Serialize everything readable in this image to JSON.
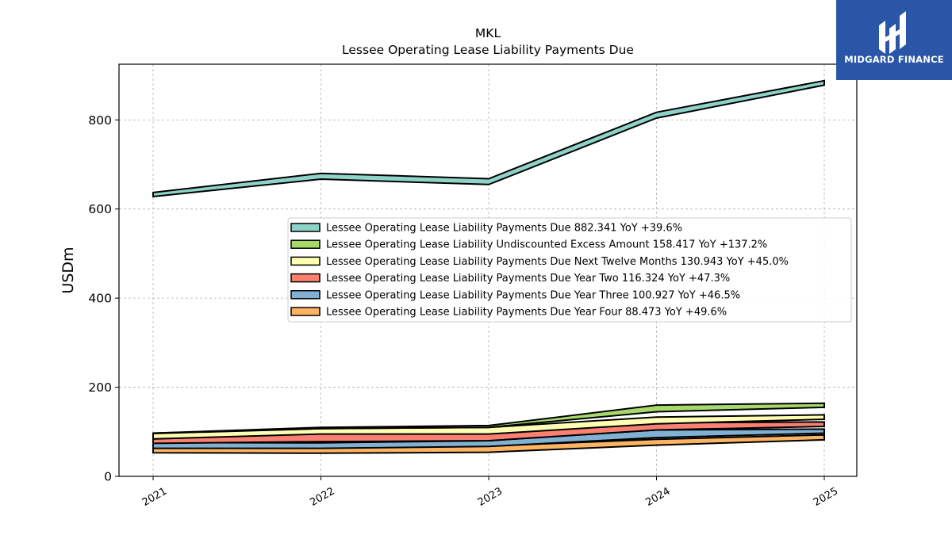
{
  "chart_data": {
    "type": "area",
    "title": "MKL",
    "subtitle": "Lessee Operating Lease Liability Payments Due",
    "ylabel": "USDm",
    "xlabel": "",
    "x": [
      "2021",
      "2022",
      "2023",
      "2024",
      "2025"
    ],
    "ylim": [
      0,
      925
    ],
    "yticks": [
      0,
      200,
      400,
      600,
      800
    ],
    "grid": true,
    "legend_position": "center-right",
    "series": [
      {
        "name": "Lessee Operating Lease Liability Payments Due",
        "legend": "Lessee Operating Lease Liability Payments Due  882.341 YoY +39.6%",
        "color": "#8dd3c7",
        "bottom": [
          628,
          667,
          655,
          804,
          878
        ],
        "top": [
          637,
          680,
          668,
          817,
          888
        ]
      },
      {
        "name": "Lessee Operating Lease Liability Undiscounted Excess Amount",
        "legend": "Lessee Operating Lease Liability Undiscounted Excess Amount  158.417 YoY +137.2%",
        "color": "#a6d96a",
        "bottom": [
          96,
          107,
          110,
          145,
          155
        ],
        "top": [
          97,
          110,
          114,
          160,
          164
        ]
      },
      {
        "name": "Lessee Operating Lease Liability Payments Due Next Twelve Months",
        "legend": "Lessee Operating Lease Liability Payments Due Next Twelve Months  130.943 YoY +45.0%",
        "color": "#ffffb3",
        "bottom": [
          84,
          95,
          95,
          118,
          128
        ],
        "top": [
          97,
          107,
          110,
          133,
          138
        ]
      },
      {
        "name": "Lessee Operating Lease Liability Payments Due Year Two",
        "legend": "Lessee Operating Lease Liability Payments Due Year Two  116.324 YoY +47.3%",
        "color": "#fb8072",
        "bottom": [
          74,
          78,
          80,
          104,
          112
        ],
        "top": [
          86,
          97,
          96,
          120,
          122
        ]
      },
      {
        "name": "Lessee Operating Lease Liability Payments Due Year Three",
        "legend": "Lessee Operating Lease Liability Payments Due Year Three  100.927 YoY +46.5%",
        "color": "#80b1d3",
        "bottom": [
          63,
          63,
          67,
          87,
          97
        ],
        "top": [
          76,
          75,
          80,
          104,
          106
        ]
      },
      {
        "name": "Lessee Operating Lease Liability Payments Due Year Four",
        "legend": "Lessee Operating Lease Liability Payments Due Year Four  88.473 YoY +49.6%",
        "color": "#fdb462",
        "bottom": [
          53,
          52,
          54,
          70,
          82
        ],
        "top": [
          65,
          66,
          68,
          83,
          93
        ]
      }
    ]
  },
  "logo": {
    "text": "MIDGARD FINANCE"
  }
}
